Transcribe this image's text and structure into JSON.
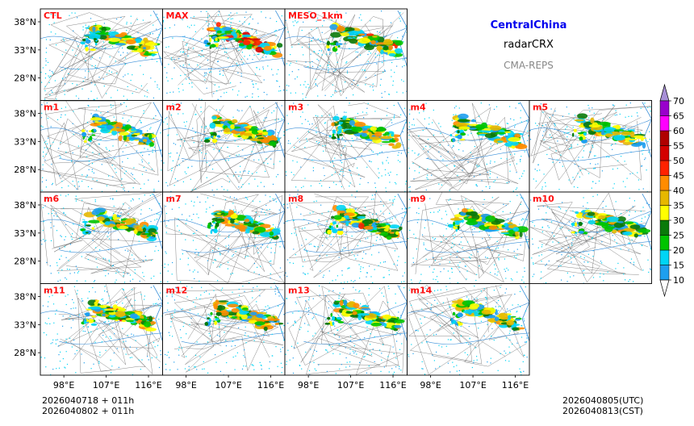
{
  "header": {
    "region": "CentralChina",
    "product": "radarCRX",
    "system": "CMA-REPS"
  },
  "panels": [
    {
      "label": "CTL",
      "row": 0,
      "col": 0,
      "intensity": 0.55
    },
    {
      "label": "MAX",
      "row": 0,
      "col": 1,
      "intensity": 1.0
    },
    {
      "label": "MESO_1km",
      "row": 0,
      "col": 2,
      "intensity": 0.75
    },
    {
      "label": "m1",
      "row": 1,
      "col": 0,
      "intensity": 0.65
    },
    {
      "label": "m2",
      "row": 1,
      "col": 1,
      "intensity": 0.65
    },
    {
      "label": "m3",
      "row": 1,
      "col": 2,
      "intensity": 0.65
    },
    {
      "label": "m4",
      "row": 1,
      "col": 3,
      "intensity": 0.6
    },
    {
      "label": "m5",
      "row": 1,
      "col": 4,
      "intensity": 0.6
    },
    {
      "label": "m6",
      "row": 2,
      "col": 0,
      "intensity": 0.65
    },
    {
      "label": "m7",
      "row": 2,
      "col": 1,
      "intensity": 0.65
    },
    {
      "label": "m8",
      "row": 2,
      "col": 2,
      "intensity": 0.7
    },
    {
      "label": "m9",
      "row": 2,
      "col": 3,
      "intensity": 0.65
    },
    {
      "label": "m10",
      "row": 2,
      "col": 4,
      "intensity": 0.6
    },
    {
      "label": "m11",
      "row": 3,
      "col": 0,
      "intensity": 0.7
    },
    {
      "label": "m12",
      "row": 3,
      "col": 1,
      "intensity": 0.65
    },
    {
      "label": "m13",
      "row": 3,
      "col": 2,
      "intensity": 0.65
    },
    {
      "label": "m14",
      "row": 3,
      "col": 3,
      "intensity": 0.6
    }
  ],
  "lat_ticks": [
    "38°N",
    "33°N",
    "28°N"
  ],
  "lon_ticks": [
    "98°E",
    "107°E",
    "116°E"
  ],
  "colorbar": {
    "levels": [
      "10",
      "15",
      "20",
      "25",
      "30",
      "35",
      "40",
      "45",
      "50",
      "55",
      "60",
      "65",
      "70"
    ],
    "colors": [
      "#1e9fef",
      "#00d5f5",
      "#00c400",
      "#0a7a0a",
      "#ffff00",
      "#e6b800",
      "#ff8c00",
      "#ff2200",
      "#d40000",
      "#b00000",
      "#ff00ff",
      "#9900cc",
      "#a78fd6"
    ]
  },
  "footer": {
    "left_line1": "2026040718  +  011h",
    "left_line2": "2026040802  +  011h",
    "right_line1": "2026040805(UTC)",
    "right_line2": "2026040813(CST)"
  }
}
